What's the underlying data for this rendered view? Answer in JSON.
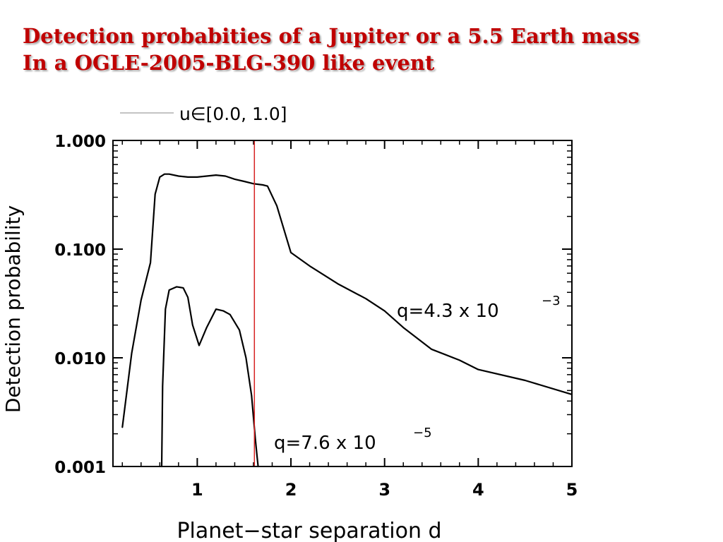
{
  "slide": {
    "title_line1": "Detection probabities of a Jupiter or a 5.5 Earth mass",
    "title_line2": "In a OGLE-2005-BLG-390 like event"
  },
  "chart_data": {
    "type": "line",
    "title": "",
    "xlabel": "Planet−star separation d",
    "ylabel": "Detection probability",
    "xlim": [
      0.1,
      5.0
    ],
    "ylim": [
      0.001,
      1.0
    ],
    "y_scale": "log",
    "grid": false,
    "legend": {
      "placement": "top-left",
      "label": "u∈[0.0, 1.0]"
    },
    "x_ticks": [
      1,
      2,
      3,
      4,
      5
    ],
    "y_ticks": [
      0.001,
      0.01,
      0.1,
      1.0
    ],
    "y_tick_labels": [
      "0.001",
      "0.010",
      "0.100",
      "1.000"
    ],
    "series": [
      {
        "name": "q=4.3 x 10^-3",
        "label_main": "q=4.3  x  10",
        "label_exp": "−3",
        "x": [
          0.2,
          0.3,
          0.4,
          0.5,
          0.55,
          0.6,
          0.65,
          0.7,
          0.8,
          0.9,
          1.0,
          1.1,
          1.2,
          1.3,
          1.4,
          1.5,
          1.6,
          1.7,
          1.75,
          1.85,
          2.0,
          2.2,
          2.5,
          2.8,
          3.0,
          3.2,
          3.5,
          3.8,
          4.0,
          4.5,
          5.0
        ],
        "y": [
          0.0023,
          0.011,
          0.034,
          0.075,
          0.32,
          0.46,
          0.49,
          0.49,
          0.47,
          0.46,
          0.46,
          0.47,
          0.48,
          0.47,
          0.44,
          0.42,
          0.4,
          0.39,
          0.38,
          0.25,
          0.093,
          0.07,
          0.048,
          0.035,
          0.027,
          0.019,
          0.012,
          0.0095,
          0.0078,
          0.0062,
          0.0046
        ]
      },
      {
        "name": "q=7.6 x 10^-5",
        "label_main": "q=7.6  x  10",
        "label_exp": "−5",
        "x": [
          0.62,
          0.63,
          0.66,
          0.7,
          0.78,
          0.85,
          0.9,
          0.95,
          1.02,
          1.1,
          1.2,
          1.28,
          1.35,
          1.45,
          1.52,
          1.58,
          1.62,
          1.64,
          1.65
        ],
        "y": [
          0.001,
          0.0055,
          0.028,
          0.042,
          0.045,
          0.044,
          0.036,
          0.02,
          0.013,
          0.019,
          0.028,
          0.027,
          0.025,
          0.018,
          0.01,
          0.0045,
          0.0018,
          0.0012,
          0.001
        ]
      }
    ],
    "vertical_line": {
      "x": 1.61,
      "color": "#d62020"
    }
  }
}
